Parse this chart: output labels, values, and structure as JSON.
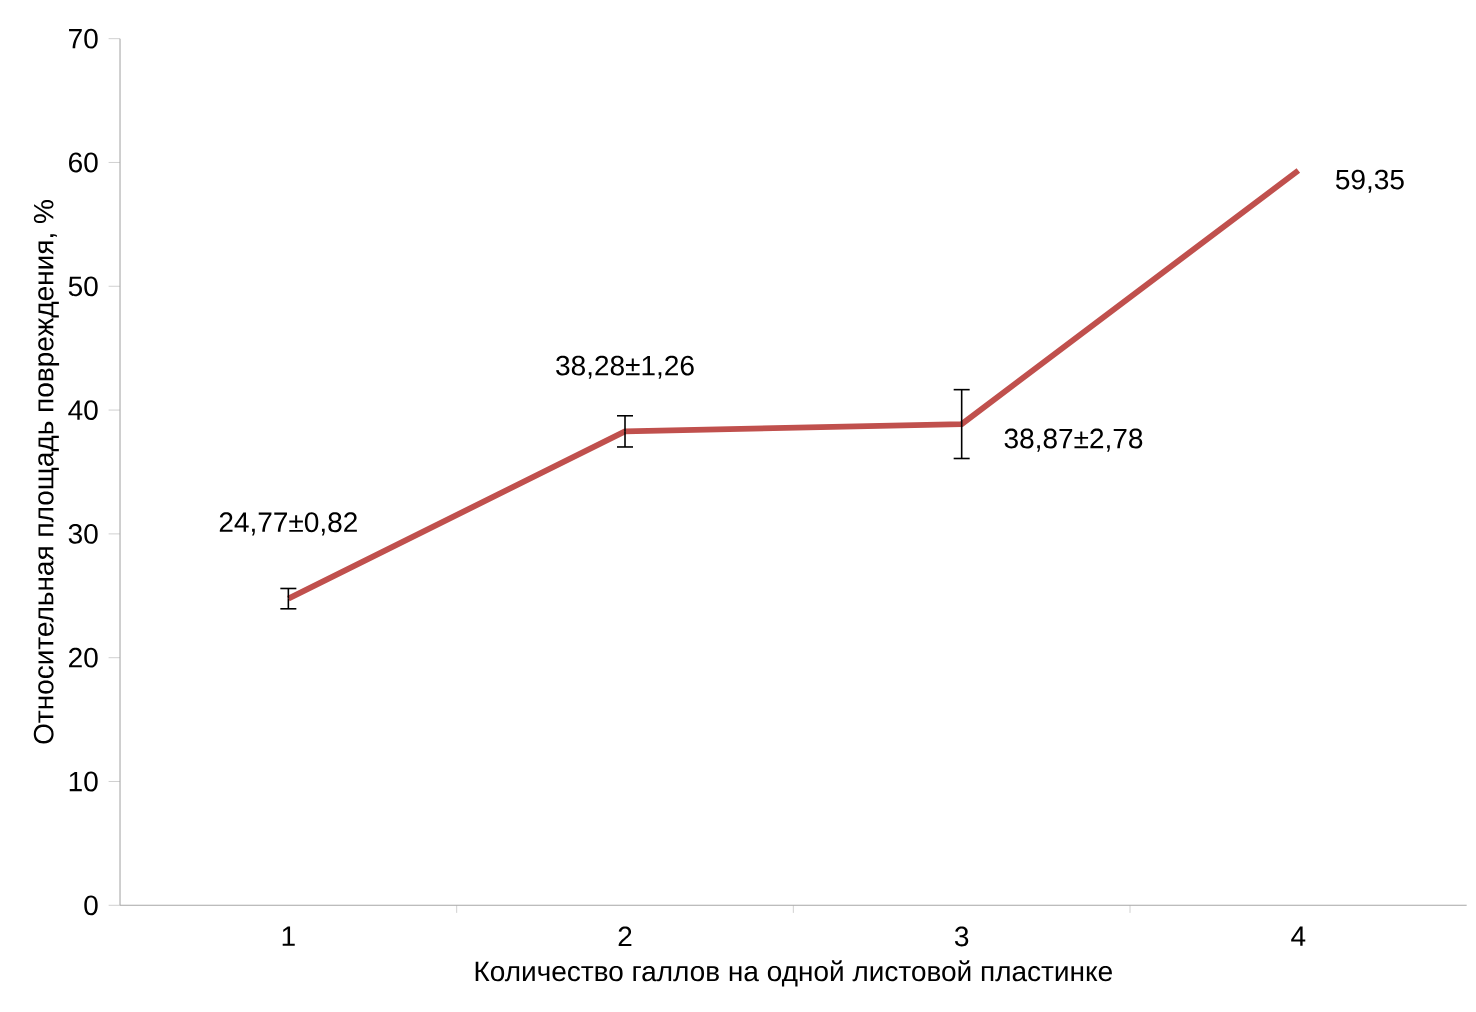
{
  "chart_data": {
    "type": "line",
    "xlabel": "Количество галлов на одной листовой пластинке",
    "ylabel": "Относительная площадь повреждения, %",
    "categories": [
      "1",
      "2",
      "3",
      "4"
    ],
    "values": [
      24.77,
      38.28,
      38.87,
      59.35
    ],
    "errors": [
      0.82,
      1.26,
      2.78,
      null
    ],
    "value_labels": [
      "24,77±0,82",
      "38,28±1,26",
      "38,87±2,78",
      "59,35"
    ],
    "color": "#c0504d",
    "marker": "none",
    "line_style": "solid",
    "grid": false,
    "ylim": [
      0,
      70
    ],
    "yticks": [
      0,
      10,
      20,
      30,
      40,
      50,
      60,
      70
    ]
  }
}
